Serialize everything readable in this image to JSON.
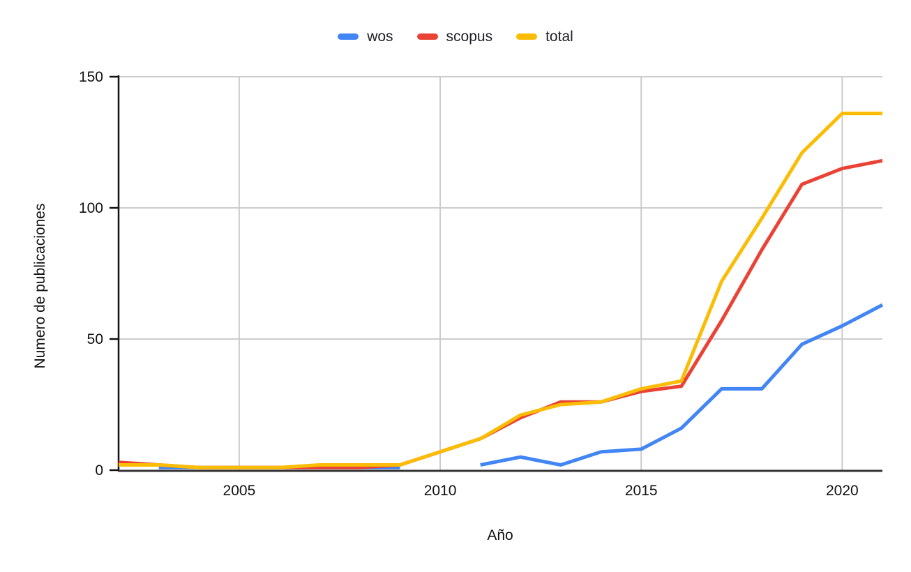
{
  "colors": {
    "background": "#ffffff",
    "grid": "#cccccc",
    "x_axis": "#333333",
    "y_axis": "#111111",
    "text": "#111111",
    "series_wos": "#4285F4",
    "series_scopus": "#EA4335",
    "series_total": "#FBBC04"
  },
  "chart_data": {
    "type": "line",
    "title": "",
    "xlabel": "Año",
    "ylabel": "Numero de publicaciones",
    "xlim": [
      2002,
      2021
    ],
    "ylim": [
      0,
      150
    ],
    "grid": true,
    "legend_position": "top",
    "x_ticks": [
      2005,
      2010,
      2015,
      2020
    ],
    "y_ticks": [
      0,
      50,
      100,
      150
    ],
    "x": [
      2002,
      2003,
      2004,
      2005,
      2006,
      2007,
      2008,
      2009,
      2010,
      2011,
      2012,
      2013,
      2014,
      2015,
      2016,
      2017,
      2018,
      2019,
      2020,
      2021
    ],
    "series": [
      {
        "name": "wos",
        "color": "#4285F4",
        "values": [
          null,
          1,
          1,
          1,
          1,
          1,
          1,
          1,
          null,
          2,
          5,
          2,
          7,
          8,
          16,
          31,
          31,
          48,
          55,
          63
        ]
      },
      {
        "name": "scopus",
        "color": "#EA4335",
        "values": [
          3,
          2,
          1,
          1,
          1,
          1,
          1,
          2,
          7,
          12,
          20,
          26,
          26,
          30,
          32,
          57,
          84,
          109,
          115,
          118
        ]
      },
      {
        "name": "total",
        "color": "#FBBC04",
        "values": [
          2,
          2,
          1,
          1,
          1,
          2,
          2,
          2,
          7,
          12,
          21,
          25,
          26,
          31,
          34,
          72,
          96,
          121,
          136,
          136
        ]
      }
    ]
  }
}
